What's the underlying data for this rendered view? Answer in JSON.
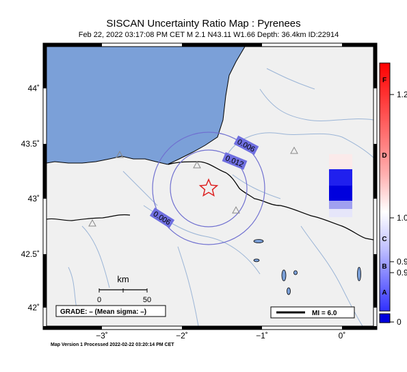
{
  "header": {
    "title": "SISCAN Uncertainty Ratio Map : Pyrenees",
    "subtitle": "Feb 22, 2022 03:17:08 PM CET   M 2.1   N43.11 W1.66   Depth: 36.4km   ID:22914"
  },
  "axes": {
    "lat_labels": [
      "44˚",
      "43.5˚",
      "43˚",
      "42.5˚",
      "42˚"
    ],
    "lon_labels": [
      "−3˚",
      "−2˚",
      "−1˚",
      "0˚"
    ]
  },
  "contours": {
    "labels": [
      "0.006",
      "0.012",
      "0.006"
    ],
    "line_color": "#7070d0"
  },
  "scale_bar": {
    "unit": "km",
    "ticks": [
      "0",
      "50"
    ]
  },
  "grade_box": {
    "text": "GRADE: – (Mean sigma: –)"
  },
  "mi_box": {
    "text": "MI = 6.0"
  },
  "colorbar": {
    "grade_labels": [
      "F",
      "D",
      "C",
      "B",
      "A"
    ],
    "value_labels": [
      "1.2",
      "1.0",
      "0.9",
      "0.9",
      "0"
    ],
    "top_color": "#ff0000",
    "bottom_color": "#0000ff"
  },
  "footer": {
    "text": "Map Version 1 Processed 2022-02-22 03:20:14 PM CET"
  },
  "colors": {
    "sea": "#7ba0d8",
    "land": "#f0f0f0",
    "epicenter": "#dd2222",
    "rivers": "#9ab4d6"
  },
  "icons": [
    "epicenter-star-icon",
    "station-triangle-icon"
  ]
}
